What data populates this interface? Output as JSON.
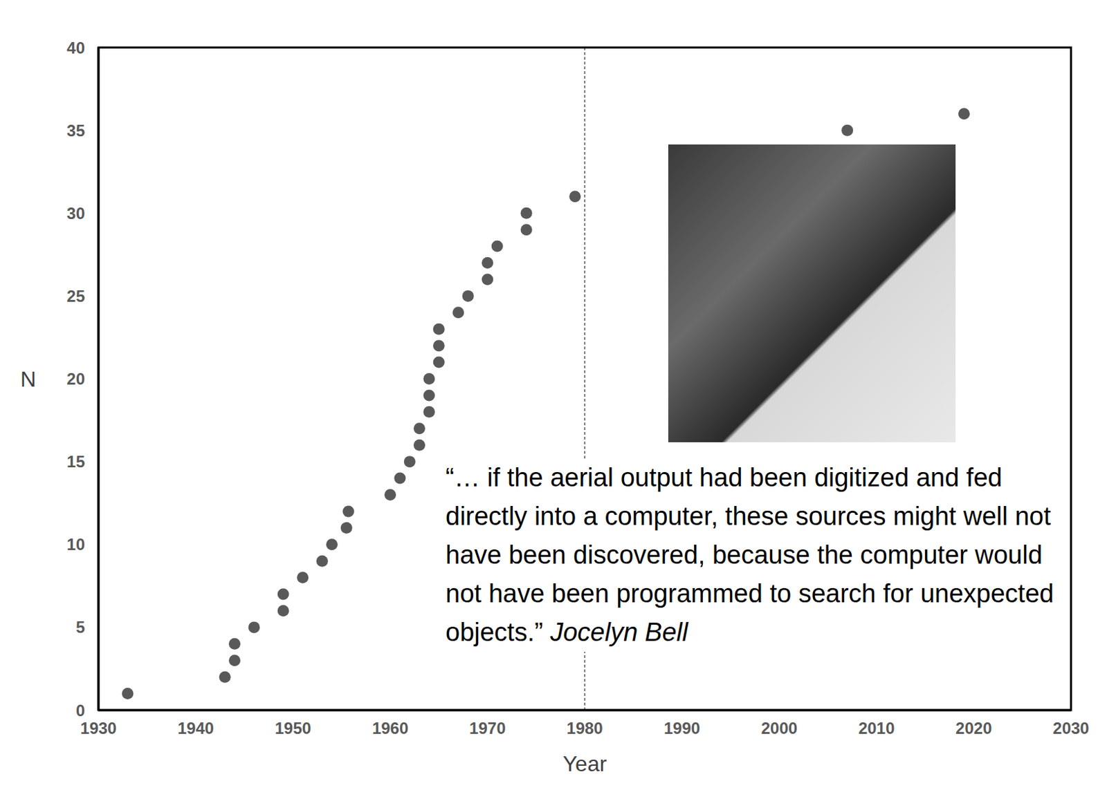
{
  "chart_data": {
    "type": "scatter",
    "x_label": "Year",
    "y_label": "N",
    "x": [
      1933,
      1943,
      1944,
      1944,
      1946,
      1949,
      1949,
      1951,
      1953,
      1954,
      1955.5,
      1955.7,
      1960,
      1961,
      1962,
      1963,
      1963,
      1964,
      1964,
      1964,
      1965,
      1965,
      1965,
      1967,
      1968,
      1970,
      1970,
      1971,
      1974,
      1974,
      1979,
      2007,
      2019
    ],
    "values": [
      1,
      2,
      3,
      4,
      5,
      6,
      7,
      8,
      9,
      10,
      11,
      12,
      13,
      14,
      15,
      16,
      17,
      18,
      19,
      20,
      21,
      22,
      23,
      24,
      25,
      26,
      27,
      28,
      29,
      30,
      31,
      35,
      36
    ],
    "color": "#595959",
    "marker": "circle",
    "xlim": [
      1930,
      2030
    ],
    "xticks": [
      1930,
      1940,
      1950,
      1960,
      1970,
      1980,
      1990,
      2000,
      2010,
      2020,
      2030
    ],
    "ylim": [
      0,
      40
    ],
    "yticks": [
      0,
      5,
      10,
      15,
      20,
      25,
      30,
      35,
      40
    ],
    "vlines": [
      1980
    ],
    "annotations": [
      {
        "text": "“… if the aerial output had been digitized and fed directly into a computer, these sources might well not have been discovered, because the computer would not have been programmed to search for unexpected objects.”",
        "author": "Jocelyn Bell"
      }
    ]
  }
}
